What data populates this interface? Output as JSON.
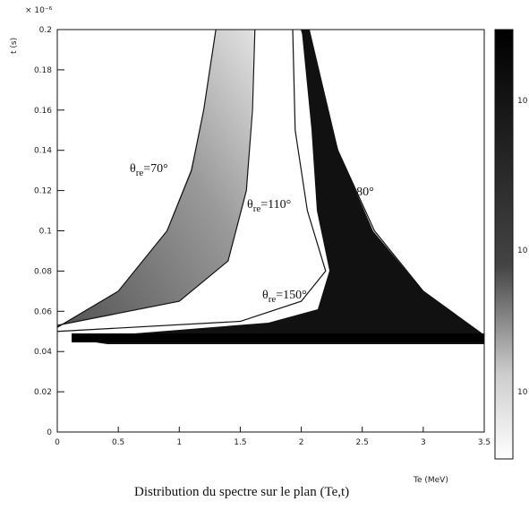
{
  "chart_data": {
    "type": "contour",
    "y_label": "t (s)",
    "y_multiplier": "× 10⁻⁶",
    "x_unit_label": "Te (MeV)",
    "x_label": "Distribution du spectre sur le plan (Te,t)",
    "xlim": [
      0,
      3.5
    ],
    "ylim": [
      0,
      0.2
    ],
    "xticks": [
      0,
      0.5,
      1,
      1.5,
      2,
      2.5,
      3,
      3.5
    ],
    "yticks": [
      0,
      0.02,
      0.04,
      0.06,
      0.08,
      0.1,
      0.12,
      0.14,
      0.16,
      0.18,
      0.2
    ],
    "colorbar_labels": [
      "10",
      "10",
      "10"
    ],
    "series": [
      {
        "name": "=70°",
        "symbol": "θ",
        "sub": "re",
        "color": "#111",
        "x": [
          0,
          0.5,
          0.9,
          1.1,
          1.2,
          1.3
        ],
        "values": [
          0.052,
          0.07,
          0.1,
          0.13,
          0.16,
          0.2
        ]
      },
      {
        "name": "=110°",
        "symbol": "θ",
        "sub": "re",
        "color": "#111",
        "x": [
          0,
          1,
          1.4,
          1.55,
          1.6,
          1.62
        ],
        "values": [
          0.053,
          0.065,
          0.085,
          0.12,
          0.16,
          0.2
        ]
      },
      {
        "name": "=150°",
        "symbol": "θ",
        "sub": "re",
        "color": "#111",
        "x": [
          0,
          1.5,
          2,
          2.2,
          2.05,
          1.95,
          1.93
        ],
        "values": [
          0.05,
          0.055,
          0.065,
          0.08,
          0.11,
          0.15,
          0.2
        ]
      },
      {
        "name": "=180°",
        "symbol": "θ",
        "sub": "re",
        "color": "#111",
        "x": [
          2,
          2.3,
          2.6,
          3,
          3.5
        ],
        "values": [
          0.2,
          0.14,
          0.1,
          0.07,
          0.048
        ]
      }
    ]
  }
}
